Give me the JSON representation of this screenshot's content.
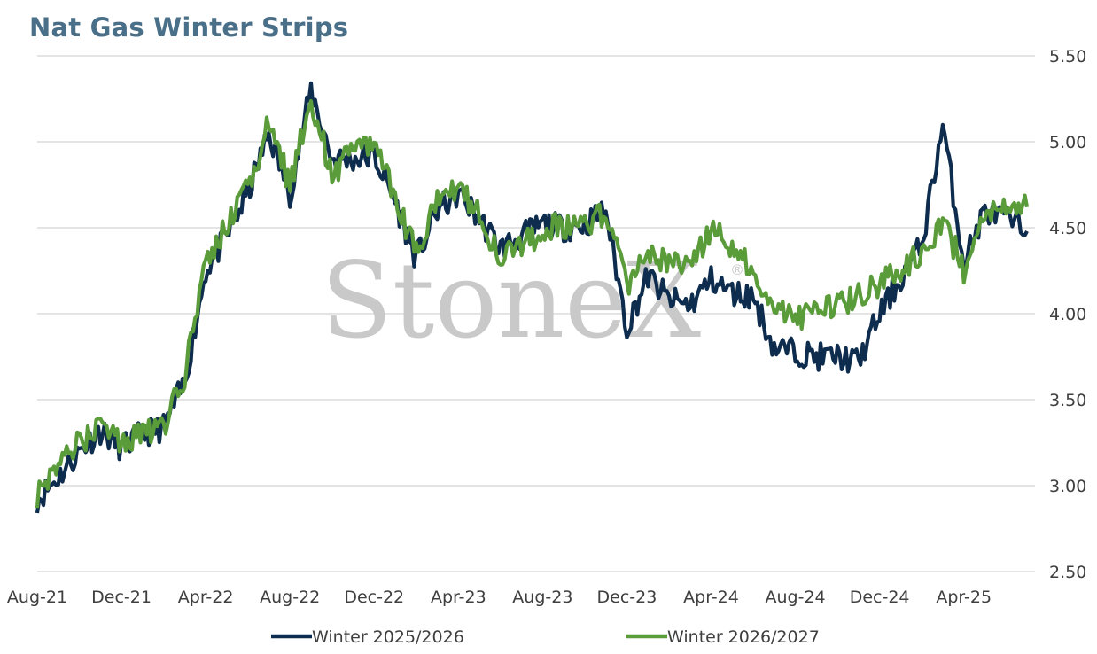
{
  "chart_data": {
    "type": "line",
    "title": "Nat Gas Winter Strips",
    "xlabel": "",
    "ylabel": "",
    "watermark": "StoneX",
    "x_ticks": [
      "Aug-21",
      "Dec-21",
      "Apr-22",
      "Aug-22",
      "Dec-22",
      "Apr-23",
      "Aug-23",
      "Dec-23",
      "Apr-24",
      "Aug-24",
      "Dec-24",
      "Apr-25"
    ],
    "y_ticks": [
      "5.50",
      "5.00",
      "4.50",
      "4.00",
      "3.50",
      "3.00",
      "2.50"
    ],
    "ylim": [
      2.5,
      5.5
    ],
    "grid": true,
    "legend_position": "bottom",
    "x": [
      "Aug-21",
      "Sep-21",
      "Oct-21",
      "Nov-21",
      "Dec-21",
      "Jan-22",
      "Feb-22",
      "Mar-22",
      "Apr-22",
      "May-22",
      "Jun-22",
      "Jul-22",
      "Aug-22",
      "Sep-22",
      "Oct-22",
      "Nov-22",
      "Dec-22",
      "Jan-23",
      "Feb-23",
      "Mar-23",
      "Apr-23",
      "May-23",
      "Jun-23",
      "Jul-23",
      "Aug-23",
      "Sep-23",
      "Oct-23",
      "Nov-23",
      "Dec-23",
      "Jan-24",
      "Feb-24",
      "Mar-24",
      "Apr-24",
      "May-24",
      "Jun-24",
      "Jul-24",
      "Aug-24",
      "Sep-24",
      "Oct-24",
      "Nov-24",
      "Dec-24",
      "Jan-25",
      "Feb-25",
      "Mar-25",
      "Apr-25",
      "May-25",
      "Jun-25",
      "Jul-25"
    ],
    "series": [
      {
        "name": "Winter 2025/2026",
        "color": "#0e2d4e",
        "values": [
          2.92,
          3.05,
          3.2,
          3.32,
          3.22,
          3.3,
          3.34,
          3.6,
          4.25,
          4.45,
          4.7,
          5.05,
          4.7,
          5.3,
          4.9,
          4.9,
          4.92,
          4.65,
          4.32,
          4.6,
          4.7,
          4.55,
          4.38,
          4.45,
          4.52,
          4.5,
          4.52,
          4.6,
          3.92,
          4.22,
          4.08,
          4.05,
          4.2,
          4.12,
          4.1,
          3.8,
          3.78,
          3.75,
          3.75,
          3.72,
          4.0,
          4.2,
          4.4,
          5.1,
          4.3,
          4.6,
          4.55,
          4.48
        ]
      },
      {
        "name": "Winter 2026/2027",
        "color": "#5a9b3a",
        "values": [
          2.95,
          3.15,
          3.25,
          3.35,
          3.25,
          3.32,
          3.34,
          3.65,
          4.3,
          4.5,
          4.75,
          5.1,
          4.75,
          5.25,
          4.8,
          4.95,
          5.0,
          4.65,
          4.35,
          4.7,
          4.72,
          4.6,
          4.3,
          4.4,
          4.48,
          4.52,
          4.5,
          4.58,
          4.15,
          4.35,
          4.3,
          4.28,
          4.5,
          4.4,
          4.25,
          4.05,
          3.98,
          4.02,
          4.05,
          4.1,
          4.18,
          4.25,
          4.35,
          4.55,
          4.25,
          4.55,
          4.6,
          4.62
        ]
      }
    ]
  }
}
